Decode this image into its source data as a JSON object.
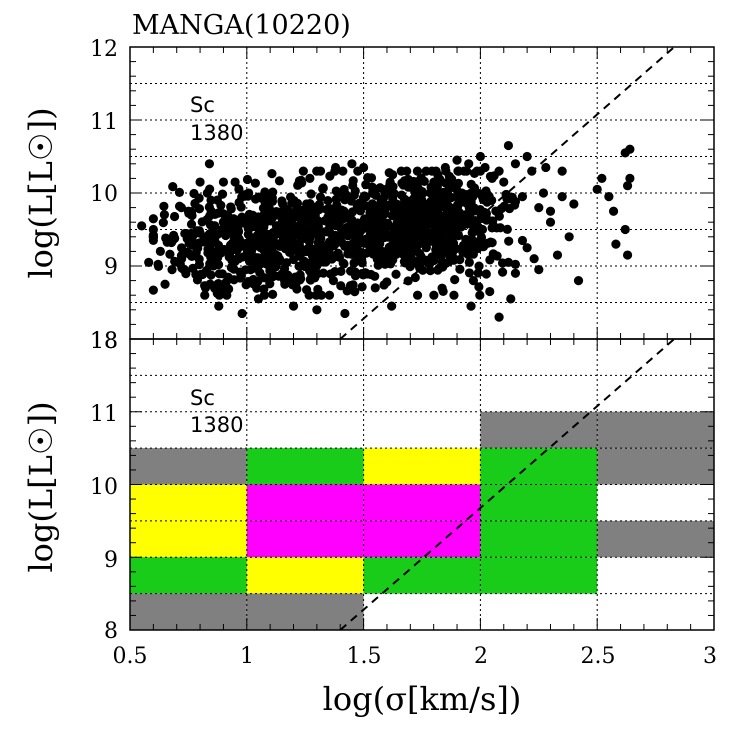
{
  "chart_data": [
    {
      "type": "scatter",
      "panel": "top",
      "title": "MANGA(10220)",
      "xlabel": "log(σ[km/s])",
      "ylabel": "log(L[L☉])",
      "xlim": [
        0.5,
        3
      ],
      "ylim": [
        8,
        12
      ],
      "x_ticks": [],
      "y_ticks": [
        "9",
        "10",
        "11",
        "12"
      ],
      "y_bottom_label": "18",
      "annotation": {
        "line1": "Sc",
        "line2": "1380"
      },
      "reference_line": {
        "x": [
          1.4,
          2.83
        ],
        "y": [
          8,
          12
        ]
      },
      "clusters": [
        {
          "cx": 1.05,
          "cy": 9.35,
          "sx": 0.22,
          "sy": 0.35,
          "n": 520
        },
        {
          "cx": 1.6,
          "cy": 9.5,
          "sx": 0.22,
          "sy": 0.38,
          "n": 520
        },
        {
          "cx": 1.85,
          "cy": 9.7,
          "sx": 0.12,
          "sy": 0.35,
          "n": 240
        }
      ],
      "points": [
        [
          0.55,
          9.55
        ],
        [
          0.6,
          9.5
        ],
        [
          0.58,
          9.05
        ],
        [
          0.63,
          9.2
        ],
        [
          0.65,
          8.75
        ],
        [
          0.68,
          8.95
        ],
        [
          0.72,
          9.8
        ],
        [
          0.75,
          9.75
        ],
        [
          0.8,
          10.15
        ],
        [
          0.84,
          10.4
        ],
        [
          0.9,
          10.15
        ],
        [
          0.95,
          10.15
        ],
        [
          0.82,
          8.6
        ],
        [
          0.88,
          8.45
        ],
        [
          0.98,
          8.35
        ],
        [
          1.05,
          8.55
        ],
        [
          1.27,
          10.2
        ],
        [
          1.38,
          10.35
        ],
        [
          1.45,
          10.4
        ],
        [
          1.5,
          10.35
        ],
        [
          1.2,
          8.45
        ],
        [
          1.3,
          8.4
        ],
        [
          1.42,
          8.35
        ],
        [
          1.55,
          8.7
        ],
        [
          1.62,
          8.45
        ],
        [
          1.85,
          10.35
        ],
        [
          1.9,
          10.45
        ],
        [
          1.95,
          10.4
        ],
        [
          2.0,
          10.5
        ],
        [
          2.02,
          10.35
        ],
        [
          2.05,
          10.2
        ],
        [
          2.08,
          10.3
        ],
        [
          2.1,
          10.15
        ],
        [
          2.12,
          10.65
        ],
        [
          2.15,
          10.4
        ],
        [
          2.18,
          9.95
        ],
        [
          2.2,
          10.5
        ],
        [
          2.22,
          10.3
        ],
        [
          2.25,
          9.8
        ],
        [
          2.28,
          10.35
        ],
        [
          2.3,
          9.75
        ],
        [
          2.35,
          10.3
        ],
        [
          2.08,
          8.3
        ],
        [
          2.04,
          8.65
        ],
        [
          2.13,
          8.55
        ],
        [
          1.96,
          8.45
        ],
        [
          1.97,
          8.8
        ],
        [
          2.15,
          8.9
        ],
        [
          2.12,
          9.05
        ],
        [
          2.18,
          9.35
        ],
        [
          2.2,
          9.25
        ],
        [
          2.23,
          9.1
        ],
        [
          2.25,
          8.95
        ],
        [
          2.3,
          9.6
        ],
        [
          2.33,
          9.15
        ],
        [
          2.38,
          9.4
        ],
        [
          2.35,
          9.95
        ],
        [
          2.4,
          9.85
        ],
        [
          2.42,
          8.8
        ],
        [
          2.5,
          10.05
        ],
        [
          2.52,
          10.2
        ],
        [
          2.55,
          9.95
        ],
        [
          2.57,
          9.75
        ],
        [
          2.58,
          9.3
        ],
        [
          2.62,
          9.5
        ],
        [
          2.63,
          10.1
        ],
        [
          2.64,
          10.2
        ],
        [
          2.62,
          10.55
        ],
        [
          2.64,
          10.6
        ],
        [
          2.63,
          9.15
        ],
        [
          2.27,
          10.0
        ]
      ]
    },
    {
      "type": "heatmap",
      "panel": "bottom",
      "xlabel": "log(σ[km/s])",
      "ylabel": "log(L[L☉])",
      "xlim": [
        0.5,
        3
      ],
      "ylim": [
        8,
        12
      ],
      "x_ticks": [
        "0.5",
        "1",
        "1.5",
        "2",
        "2.5",
        "3"
      ],
      "y_ticks": [
        "8",
        "9",
        "10",
        "11"
      ],
      "y_top_label": "18",
      "annotation": {
        "line1": "Sc",
        "line2": "1380"
      },
      "reference_line": {
        "x": [
          1.4,
          2.83
        ],
        "y": [
          8,
          12
        ]
      },
      "bin_size": 0.5,
      "cells": [
        {
          "x": 0.5,
          "y": 10.0,
          "color": "#808080"
        },
        {
          "x": 0.5,
          "y": 9.5,
          "color": "#ffff00"
        },
        {
          "x": 0.5,
          "y": 9.0,
          "color": "#ffff00"
        },
        {
          "x": 0.5,
          "y": 8.5,
          "color": "#19cc19"
        },
        {
          "x": 0.5,
          "y": 8.0,
          "color": "#808080"
        },
        {
          "x": 1.0,
          "y": 10.0,
          "color": "#19cc19"
        },
        {
          "x": 1.0,
          "y": 9.5,
          "color": "#ff00ff"
        },
        {
          "x": 1.0,
          "y": 9.0,
          "color": "#ff00ff"
        },
        {
          "x": 1.0,
          "y": 8.5,
          "color": "#ffff00"
        },
        {
          "x": 1.0,
          "y": 8.0,
          "color": "#808080"
        },
        {
          "x": 1.5,
          "y": 10.0,
          "color": "#ffff00"
        },
        {
          "x": 1.5,
          "y": 9.5,
          "color": "#ff00ff"
        },
        {
          "x": 1.5,
          "y": 9.0,
          "color": "#ff00ff"
        },
        {
          "x": 1.5,
          "y": 8.5,
          "color": "#19cc19"
        },
        {
          "x": 2.0,
          "y": 10.5,
          "color": "#808080"
        },
        {
          "x": 2.0,
          "y": 10.0,
          "color": "#19cc19"
        },
        {
          "x": 2.0,
          "y": 9.5,
          "color": "#19cc19"
        },
        {
          "x": 2.0,
          "y": 9.0,
          "color": "#19cc19"
        },
        {
          "x": 2.0,
          "y": 8.5,
          "color": "#19cc19"
        },
        {
          "x": 2.5,
          "y": 10.5,
          "color": "#808080"
        },
        {
          "x": 2.5,
          "y": 10.0,
          "color": "#808080"
        },
        {
          "x": 2.5,
          "y": 9.0,
          "color": "#808080"
        }
      ]
    }
  ]
}
